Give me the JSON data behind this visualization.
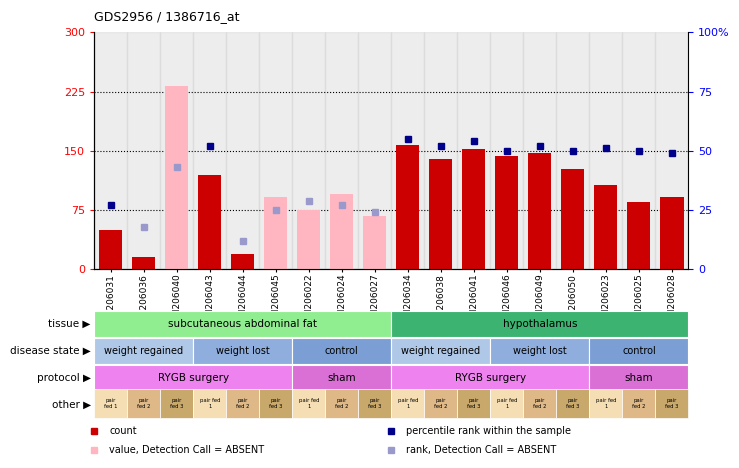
{
  "title": "GDS2956 / 1386716_at",
  "samples": [
    "GSM206031",
    "GSM206036",
    "GSM206040",
    "GSM206043",
    "GSM206044",
    "GSM206045",
    "GSM206022",
    "GSM206024",
    "GSM206027",
    "GSM206034",
    "GSM206038",
    "GSM206041",
    "GSM206046",
    "GSM206049",
    "GSM206050",
    "GSM206023",
    "GSM206025",
    "GSM206028"
  ],
  "count_values": [
    50,
    15,
    null,
    120,
    20,
    null,
    null,
    null,
    null,
    158,
    140,
    152,
    143,
    147,
    127,
    107,
    85,
    92
  ],
  "count_absent": [
    null,
    null,
    232,
    null,
    null,
    92,
    75,
    95,
    67,
    null,
    null,
    null,
    null,
    null,
    null,
    null,
    null,
    null
  ],
  "rank_values": [
    27,
    null,
    null,
    52,
    null,
    null,
    null,
    null,
    null,
    55,
    52,
    54,
    50,
    52,
    50,
    51,
    50,
    49
  ],
  "rank_absent": [
    null,
    18,
    43,
    null,
    12,
    25,
    29,
    27,
    24,
    null,
    null,
    null,
    null,
    null,
    null,
    null,
    null,
    null
  ],
  "left_ylim": [
    0,
    300
  ],
  "right_ylim": [
    0,
    100
  ],
  "left_yticks": [
    0,
    75,
    150,
    225,
    300
  ],
  "right_yticks": [
    0,
    25,
    50,
    75,
    100
  ],
  "right_yticklabels": [
    "0",
    "25",
    "50",
    "75",
    "100%"
  ],
  "tissue_labels": [
    {
      "text": "subcutaneous abdominal fat",
      "start": 0,
      "end": 8,
      "color": "#90EE90"
    },
    {
      "text": "hypothalamus",
      "start": 9,
      "end": 17,
      "color": "#3CB371"
    }
  ],
  "disease_state_labels": [
    {
      "text": "weight regained",
      "start": 0,
      "end": 2,
      "color": "#B0C8E8"
    },
    {
      "text": "weight lost",
      "start": 3,
      "end": 5,
      "color": "#90AEDD"
    },
    {
      "text": "control",
      "start": 6,
      "end": 8,
      "color": "#7B9FD4"
    },
    {
      "text": "weight regained",
      "start": 9,
      "end": 11,
      "color": "#B0C8E8"
    },
    {
      "text": "weight lost",
      "start": 12,
      "end": 14,
      "color": "#90AEDD"
    },
    {
      "text": "control",
      "start": 15,
      "end": 17,
      "color": "#7B9FD4"
    }
  ],
  "protocol_labels": [
    {
      "text": "RYGB surgery",
      "start": 0,
      "end": 5,
      "color": "#EE82EE"
    },
    {
      "text": "sham",
      "start": 6,
      "end": 8,
      "color": "#DA70D6"
    },
    {
      "text": "RYGB surgery",
      "start": 9,
      "end": 14,
      "color": "#EE82EE"
    },
    {
      "text": "sham",
      "start": 15,
      "end": 17,
      "color": "#DA70D6"
    }
  ],
  "other_texts": [
    "pair\nfed 1",
    "pair\nfed 2",
    "pair\nfed 3",
    "pair fed\n1",
    "pair\nfed 2",
    "pair\nfed 3",
    "pair fed\n1",
    "pair\nfed 2",
    "pair\nfed 3",
    "pair fed\n1",
    "pair\nfed 2",
    "pair\nfed 3",
    "pair fed\n1",
    "pair\nfed 2",
    "pair\nfed 3",
    "pair fed\n1",
    "pair\nfed 2",
    "pair\nfed 3"
  ],
  "other_colors": [
    "#F5DEB3",
    "#DEB887",
    "#C8A86B",
    "#F5DEB3",
    "#DEB887",
    "#C8A86B",
    "#F5DEB3",
    "#DEB887",
    "#C8A86B",
    "#F5DEB3",
    "#DEB887",
    "#C8A86B",
    "#F5DEB3",
    "#DEB887",
    "#C8A86B",
    "#F5DEB3",
    "#DEB887",
    "#C8A86B"
  ],
  "row_labels": [
    "tissue",
    "disease state",
    "protocol",
    "other"
  ],
  "bar_color_present": "#CC0000",
  "bar_color_absent": "#FFB6C1",
  "dot_color_present": "#00008B",
  "dot_color_absent": "#9999CC",
  "legend_items": [
    {
      "color": "#CC0000",
      "marker": "s",
      "label": "count"
    },
    {
      "color": "#00008B",
      "marker": "s",
      "label": "percentile rank within the sample"
    },
    {
      "color": "#FFB6C1",
      "marker": "s",
      "label": "value, Detection Call = ABSENT"
    },
    {
      "color": "#9999CC",
      "marker": "s",
      "label": "rank, Detection Call = ABSENT"
    }
  ],
  "col_bg_color": "#D3D3D3"
}
